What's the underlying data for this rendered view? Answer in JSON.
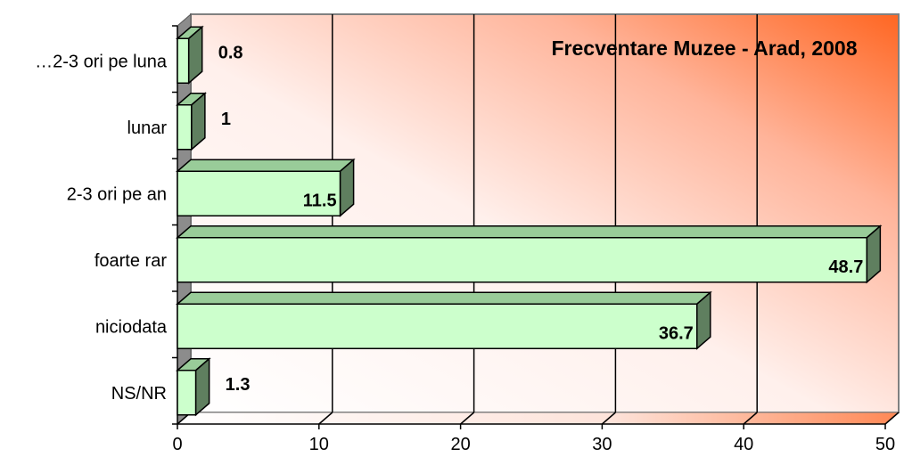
{
  "chart_data": {
    "type": "bar",
    "orientation": "horizontal",
    "title": "Frecventare Muzee - Arad, 2008",
    "categories": [
      "…2-3 ori pe luna",
      "lunar",
      "2-3 ori pe an",
      "foarte rar",
      "niciodata",
      "NS/NR"
    ],
    "values": [
      0.8,
      1,
      11.5,
      48.7,
      36.7,
      1.3
    ],
    "value_labels": [
      "0.8",
      "1",
      "11.5",
      "48.7",
      "36.7",
      "1.3"
    ],
    "xlim": [
      0,
      50
    ],
    "xticks": [
      0,
      10,
      20,
      30,
      40,
      50
    ],
    "grid": true,
    "style_3d": true,
    "colors": {
      "bar_front": "#ccffcc",
      "bar_top": "#99cc99",
      "bar_side": "#5f7f5f",
      "bar_outline": "#000000",
      "back_wall_start": "#ffffff",
      "back_wall_end": "#ff6622",
      "floor": "#c0c0c0",
      "side_wall": "#8c8c8c"
    }
  }
}
